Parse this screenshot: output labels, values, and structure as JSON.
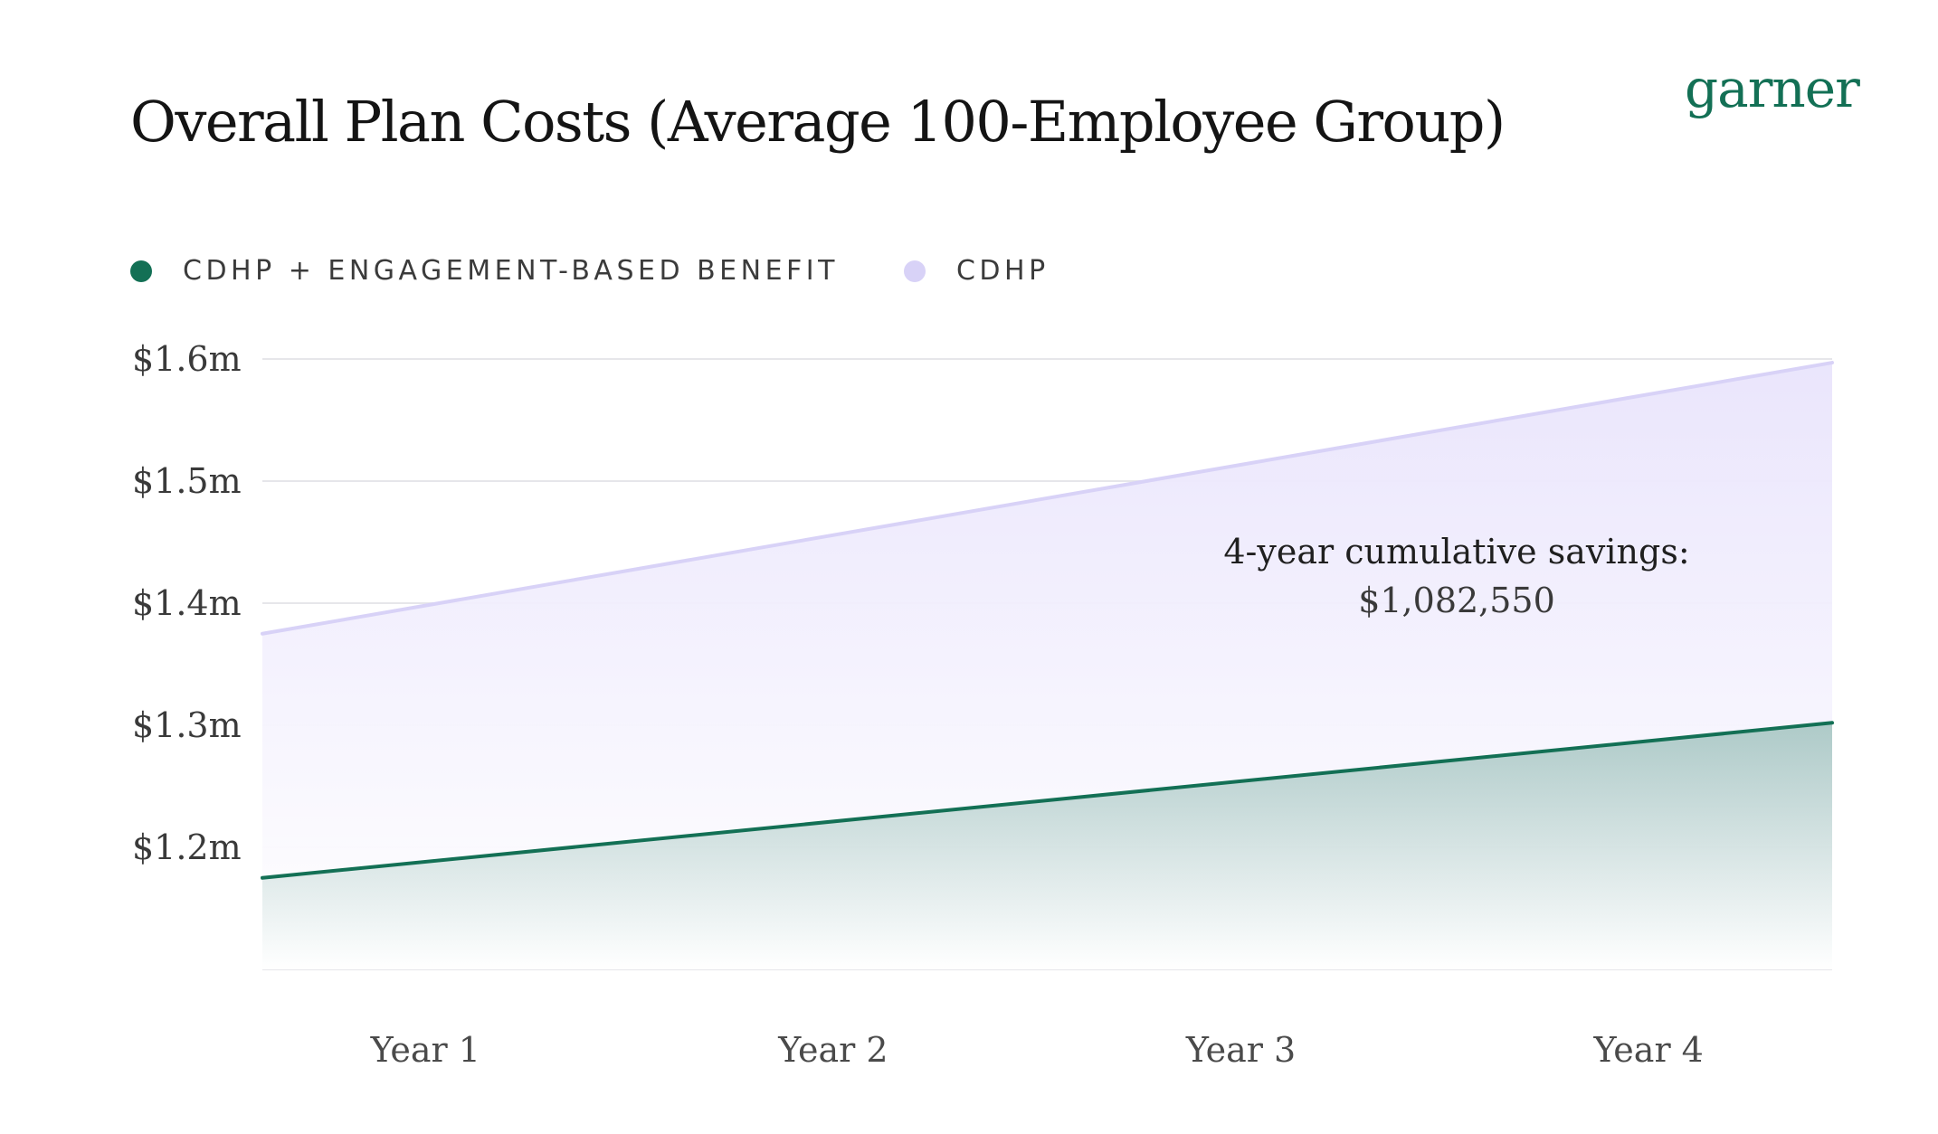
{
  "header": {
    "title": "Overall Plan Costs (Average 100-Employee Group)",
    "logo_text": "garner"
  },
  "legend": [
    {
      "label": "CDHP + ENGAGEMENT-BASED BENEFIT",
      "color": "#137055"
    },
    {
      "label": "CDHP",
      "color": "#d8d2f7"
    }
  ],
  "annotation": {
    "line1": "4-year cumulative savings:",
    "line2": "$1,082,550"
  },
  "chart_data": {
    "type": "area",
    "title": "Overall Plan Costs (Average 100-Employee Group)",
    "xlabel": "",
    "ylabel": "",
    "categories": [
      "Year 1",
      "Year 2",
      "Year 3",
      "Year 4"
    ],
    "x_range": [
      0.6,
      4.45
    ],
    "ylim": [
      1.1,
      1.6
    ],
    "y_ticks": [
      {
        "value": 1.6,
        "label": "$1.6m"
      },
      {
        "value": 1.5,
        "label": "$1.5m"
      },
      {
        "value": 1.4,
        "label": "$1.4m"
      },
      {
        "value": 1.3,
        "label": "$1.3m"
      },
      {
        "value": 1.2,
        "label": "$1.2m"
      }
    ],
    "grid": true,
    "legend_position": "top-left",
    "series": [
      {
        "name": "CDHP",
        "color": "#d8d2f7",
        "points": [
          {
            "x": 0.6,
            "y": 1.375
          },
          {
            "x": 4.45,
            "y": 1.597
          }
        ]
      },
      {
        "name": "CDHP + ENGAGEMENT-BASED BENEFIT",
        "color": "#137055",
        "points": [
          {
            "x": 0.6,
            "y": 1.175
          },
          {
            "x": 4.45,
            "y": 1.302
          }
        ]
      }
    ]
  }
}
